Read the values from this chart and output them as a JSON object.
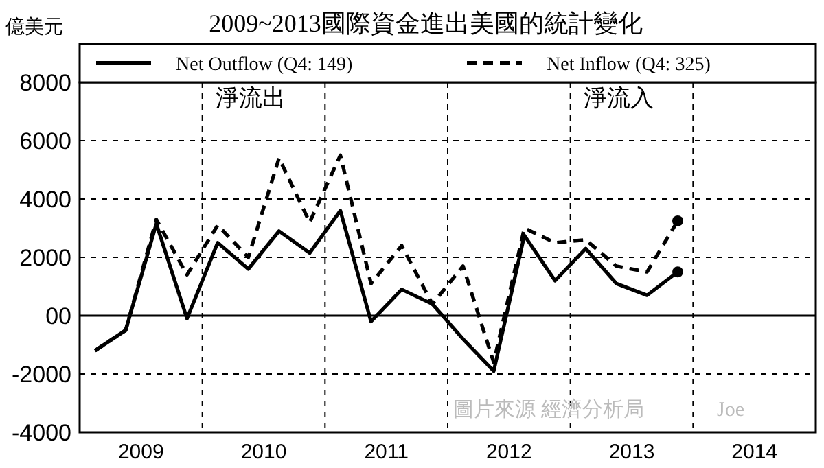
{
  "chart_data": {
    "type": "line",
    "title": "2009~2013國際資金進出美國的統計變化",
    "ylabel": "億美元",
    "x": [
      2009.125,
      2009.375,
      2009.625,
      2009.875,
      2010.125,
      2010.375,
      2010.625,
      2010.875,
      2011.125,
      2011.375,
      2011.625,
      2011.875,
      2012.125,
      2012.375,
      2012.625,
      2012.875,
      2013.125,
      2013.375,
      2013.625,
      2013.875
    ],
    "series": [
      {
        "name": "Net Outflow (Q4: 149)",
        "color": "#000000",
        "line_style": "solid",
        "values": [
          -1200,
          -500,
          3150,
          -100,
          2500,
          1600,
          2900,
          2150,
          3600,
          -200,
          900,
          400,
          -800,
          -1900,
          2750,
          1200,
          2300,
          1100,
          700,
          1500
        ]
      },
      {
        "name": "Net Inflow (Q4: 325)",
        "color": "#000000",
        "line_style": "dashed",
        "values": [
          -1200,
          -500,
          3300,
          1400,
          3100,
          2000,
          5400,
          3200,
          5500,
          1100,
          2400,
          400,
          1700,
          -1600,
          3000,
          2500,
          2600,
          1700,
          1500,
          3250
        ]
      }
    ],
    "xlim": [
      2009,
      2015
    ],
    "xticks": [
      {
        "value": 2009.5,
        "label": "2009"
      },
      {
        "value": 2010.5,
        "label": "2010"
      },
      {
        "value": 2011.5,
        "label": "2011"
      },
      {
        "value": 2012.5,
        "label": "2012"
      },
      {
        "value": 2013.5,
        "label": "2013"
      },
      {
        "value": 2014.5,
        "label": "2014"
      }
    ],
    "ylim": [
      -4000,
      8000
    ],
    "yticks": [
      -4000,
      -2000,
      {
        "value": 0,
        "label": "00"
      },
      2000,
      4000,
      6000,
      8000
    ],
    "grid": "y",
    "ref_lines": [
      {
        "axis": "x",
        "value": 2010,
        "line_style": "dashed"
      },
      {
        "axis": "x",
        "value": 2011,
        "line_style": "dashed"
      },
      {
        "axis": "x",
        "value": 2012,
        "line_style": "dashed"
      },
      {
        "axis": "x",
        "value": 2013,
        "line_style": "dashed"
      },
      {
        "axis": "x",
        "value": 2014,
        "line_style": "dashed"
      },
      {
        "axis": "y",
        "value": 0,
        "line_style": "solid"
      }
    ],
    "legend": "top",
    "annotations": [
      "淨流出",
      "淨流入",
      "圖片來源 經濟分析局",
      "Joe"
    ]
  }
}
